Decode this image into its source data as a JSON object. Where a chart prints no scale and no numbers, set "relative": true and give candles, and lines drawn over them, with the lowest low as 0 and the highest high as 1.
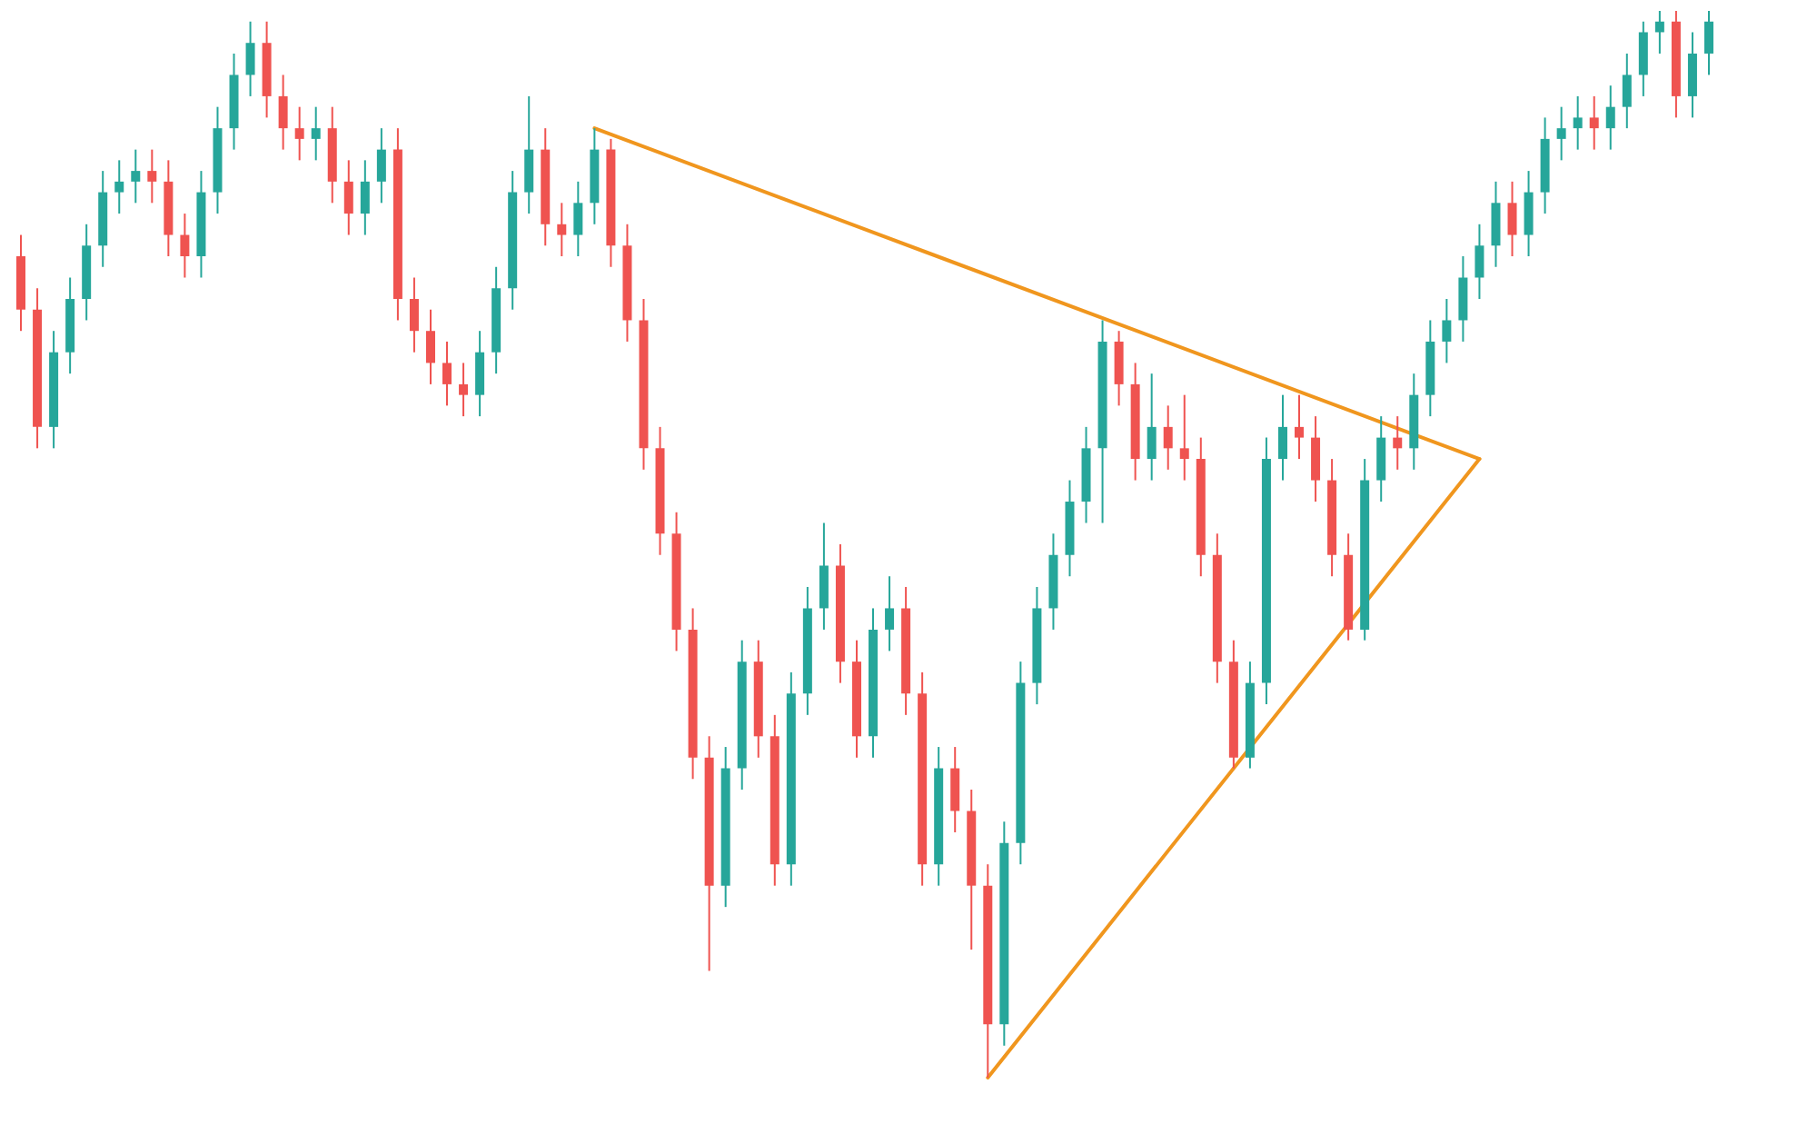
{
  "chart_data": {
    "type": "candlestick",
    "relative": true,
    "categories": [
      null,
      null,
      null,
      null,
      null,
      null,
      null,
      null,
      null,
      null,
      null,
      null,
      null,
      null,
      null,
      null,
      null,
      null,
      null,
      null,
      null,
      null,
      null,
      null,
      null,
      null,
      null,
      null,
      null,
      null,
      null,
      null,
      null,
      null,
      null,
      null,
      null,
      null,
      null,
      null,
      null,
      null,
      null,
      null,
      null,
      null,
      null,
      null,
      null,
      null,
      null,
      null,
      null,
      null,
      null,
      null,
      null,
      null,
      null,
      null,
      null,
      null,
      null,
      null,
      null,
      null,
      null,
      null,
      null,
      null,
      null,
      null,
      null,
      null,
      null,
      null,
      null,
      null,
      null,
      null,
      null,
      null,
      null,
      null,
      null,
      null,
      null,
      null,
      null,
      null,
      null,
      null,
      null,
      null,
      null,
      null,
      null,
      null,
      null,
      null,
      null,
      null,
      null,
      null
    ],
    "ohlc": [
      [
        0.77,
        0.79,
        0.7,
        0.72
      ],
      [
        0.72,
        0.74,
        0.59,
        0.61
      ],
      [
        0.61,
        0.7,
        0.59,
        0.68
      ],
      [
        0.68,
        0.75,
        0.66,
        0.73
      ],
      [
        0.73,
        0.8,
        0.71,
        0.78
      ],
      [
        0.78,
        0.85,
        0.76,
        0.83
      ],
      [
        0.83,
        0.86,
        0.81,
        0.84
      ],
      [
        0.84,
        0.87,
        0.82,
        0.85
      ],
      [
        0.85,
        0.87,
        0.82,
        0.84
      ],
      [
        0.84,
        0.86,
        0.77,
        0.79
      ],
      [
        0.79,
        0.81,
        0.75,
        0.77
      ],
      [
        0.77,
        0.85,
        0.75,
        0.83
      ],
      [
        0.83,
        0.91,
        0.81,
        0.89
      ],
      [
        0.89,
        0.96,
        0.87,
        0.94
      ],
      [
        0.94,
        0.99,
        0.92,
        0.97
      ],
      [
        0.97,
        0.99,
        0.9,
        0.92
      ],
      [
        0.92,
        0.94,
        0.87,
        0.89
      ],
      [
        0.89,
        0.91,
        0.86,
        0.88
      ],
      [
        0.88,
        0.91,
        0.86,
        0.89
      ],
      [
        0.89,
        0.91,
        0.82,
        0.84
      ],
      [
        0.84,
        0.86,
        0.79,
        0.81
      ],
      [
        0.81,
        0.86,
        0.79,
        0.84
      ],
      [
        0.84,
        0.89,
        0.82,
        0.87
      ],
      [
        0.87,
        0.89,
        0.71,
        0.73
      ],
      [
        0.73,
        0.75,
        0.68,
        0.7
      ],
      [
        0.7,
        0.72,
        0.65,
        0.67
      ],
      [
        0.67,
        0.69,
        0.63,
        0.65
      ],
      [
        0.65,
        0.67,
        0.62,
        0.64
      ],
      [
        0.64,
        0.7,
        0.62,
        0.68
      ],
      [
        0.68,
        0.76,
        0.66,
        0.74
      ],
      [
        0.74,
        0.85,
        0.72,
        0.83
      ],
      [
        0.83,
        0.92,
        0.81,
        0.87
      ],
      [
        0.87,
        0.89,
        0.78,
        0.8
      ],
      [
        0.8,
        0.82,
        0.77,
        0.79
      ],
      [
        0.79,
        0.84,
        0.77,
        0.82
      ],
      [
        0.82,
        0.89,
        0.8,
        0.87
      ],
      [
        0.87,
        0.88,
        0.76,
        0.78
      ],
      [
        0.78,
        0.8,
        0.69,
        0.71
      ],
      [
        0.71,
        0.73,
        0.57,
        0.59
      ],
      [
        0.59,
        0.61,
        0.49,
        0.51
      ],
      [
        0.51,
        0.53,
        0.4,
        0.42
      ],
      [
        0.42,
        0.44,
        0.28,
        0.3
      ],
      [
        0.3,
        0.32,
        0.1,
        0.18
      ],
      [
        0.18,
        0.31,
        0.16,
        0.29
      ],
      [
        0.29,
        0.41,
        0.27,
        0.39
      ],
      [
        0.39,
        0.41,
        0.3,
        0.32
      ],
      [
        0.32,
        0.34,
        0.18,
        0.2
      ],
      [
        0.2,
        0.38,
        0.18,
        0.36
      ],
      [
        0.36,
        0.46,
        0.34,
        0.44
      ],
      [
        0.44,
        0.52,
        0.42,
        0.48
      ],
      [
        0.48,
        0.5,
        0.37,
        0.39
      ],
      [
        0.39,
        0.41,
        0.3,
        0.32
      ],
      [
        0.32,
        0.44,
        0.3,
        0.42
      ],
      [
        0.42,
        0.47,
        0.4,
        0.44
      ],
      [
        0.44,
        0.46,
        0.34,
        0.36
      ],
      [
        0.36,
        0.38,
        0.18,
        0.2
      ],
      [
        0.2,
        0.31,
        0.18,
        0.29
      ],
      [
        0.29,
        0.31,
        0.23,
        0.25
      ],
      [
        0.25,
        0.27,
        0.12,
        0.18
      ],
      [
        0.18,
        0.2,
        0.0,
        0.05
      ],
      [
        0.05,
        0.24,
        0.03,
        0.22
      ],
      [
        0.22,
        0.39,
        0.2,
        0.37
      ],
      [
        0.37,
        0.46,
        0.35,
        0.44
      ],
      [
        0.44,
        0.51,
        0.42,
        0.49
      ],
      [
        0.49,
        0.56,
        0.47,
        0.54
      ],
      [
        0.54,
        0.61,
        0.52,
        0.59
      ],
      [
        0.59,
        0.71,
        0.52,
        0.69
      ],
      [
        0.69,
        0.7,
        0.63,
        0.65
      ],
      [
        0.65,
        0.67,
        0.56,
        0.58
      ],
      [
        0.58,
        0.66,
        0.56,
        0.61
      ],
      [
        0.61,
        0.63,
        0.57,
        0.59
      ],
      [
        0.59,
        0.64,
        0.56,
        0.58
      ],
      [
        0.58,
        0.6,
        0.47,
        0.49
      ],
      [
        0.49,
        0.51,
        0.37,
        0.39
      ],
      [
        0.39,
        0.41,
        0.29,
        0.3
      ],
      [
        0.3,
        0.39,
        0.29,
        0.37
      ],
      [
        0.37,
        0.6,
        0.35,
        0.58
      ],
      [
        0.58,
        0.64,
        0.56,
        0.61
      ],
      [
        0.61,
        0.64,
        0.58,
        0.6
      ],
      [
        0.6,
        0.62,
        0.54,
        0.56
      ],
      [
        0.56,
        0.58,
        0.47,
        0.49
      ],
      [
        0.49,
        0.51,
        0.41,
        0.42
      ],
      [
        0.42,
        0.58,
        0.41,
        0.56
      ],
      [
        0.56,
        0.62,
        0.54,
        0.6
      ],
      [
        0.6,
        0.62,
        0.57,
        0.59
      ],
      [
        0.59,
        0.66,
        0.57,
        0.64
      ],
      [
        0.64,
        0.71,
        0.62,
        0.69
      ],
      [
        0.69,
        0.73,
        0.67,
        0.71
      ],
      [
        0.71,
        0.77,
        0.69,
        0.75
      ],
      [
        0.75,
        0.8,
        0.73,
        0.78
      ],
      [
        0.78,
        0.84,
        0.76,
        0.82
      ],
      [
        0.82,
        0.84,
        0.77,
        0.79
      ],
      [
        0.79,
        0.85,
        0.77,
        0.83
      ],
      [
        0.83,
        0.9,
        0.81,
        0.88
      ],
      [
        0.88,
        0.91,
        0.86,
        0.89
      ],
      [
        0.89,
        0.92,
        0.87,
        0.9
      ],
      [
        0.9,
        0.92,
        0.87,
        0.89
      ],
      [
        0.89,
        0.93,
        0.87,
        0.91
      ],
      [
        0.91,
        0.96,
        0.89,
        0.94
      ],
      [
        0.94,
        0.99,
        0.92,
        0.98
      ],
      [
        0.98,
        1.0,
        0.96,
        0.99
      ],
      [
        0.99,
        1.0,
        0.9,
        0.92
      ],
      [
        0.92,
        0.98,
        0.9,
        0.96
      ],
      [
        0.96,
        1.0,
        0.94,
        0.99
      ]
    ],
    "series": [
      {
        "type": "line",
        "color": "#f0961e",
        "values": [
          null,
          null,
          null,
          null,
          null,
          null,
          null,
          null,
          null,
          null,
          null,
          null,
          null,
          null,
          null,
          null,
          null,
          null,
          null,
          null,
          null,
          null,
          null,
          null,
          null,
          null,
          null,
          null,
          null,
          null,
          null,
          null,
          null,
          null,
          null,
          0.89,
          null,
          null,
          null,
          null,
          null,
          null,
          null,
          null,
          null,
          null,
          null,
          null,
          null,
          null,
          null,
          null,
          null,
          null,
          null,
          null,
          null,
          null,
          null,
          null,
          null,
          null,
          null,
          null,
          null,
          null,
          null,
          null,
          null,
          null,
          null,
          null,
          null,
          null,
          null,
          null,
          null,
          null,
          null,
          null,
          null,
          null,
          null,
          null,
          null,
          null,
          null,
          null,
          null,
          0.58,
          null,
          null,
          null,
          null,
          null,
          null,
          null,
          null,
          null,
          null,
          null,
          null,
          null,
          null
        ]
      },
      {
        "type": "line",
        "color": "#f0961e",
        "values": [
          null,
          null,
          null,
          null,
          null,
          null,
          null,
          null,
          null,
          null,
          null,
          null,
          null,
          null,
          null,
          null,
          null,
          null,
          null,
          null,
          null,
          null,
          null,
          null,
          null,
          null,
          null,
          null,
          null,
          null,
          null,
          null,
          null,
          null,
          null,
          null,
          null,
          null,
          null,
          null,
          null,
          null,
          null,
          null,
          null,
          null,
          null,
          null,
          null,
          null,
          null,
          null,
          null,
          null,
          null,
          null,
          null,
          null,
          null,
          0.0,
          null,
          null,
          null,
          null,
          null,
          null,
          null,
          null,
          null,
          null,
          null,
          null,
          null,
          null,
          null,
          null,
          null,
          null,
          null,
          null,
          null,
          null,
          null,
          null,
          null,
          null,
          null,
          null,
          null,
          0.58,
          null,
          null,
          null,
          null,
          null,
          null,
          null,
          null,
          null,
          null,
          null,
          null,
          null,
          null
        ]
      }
    ]
  }
}
